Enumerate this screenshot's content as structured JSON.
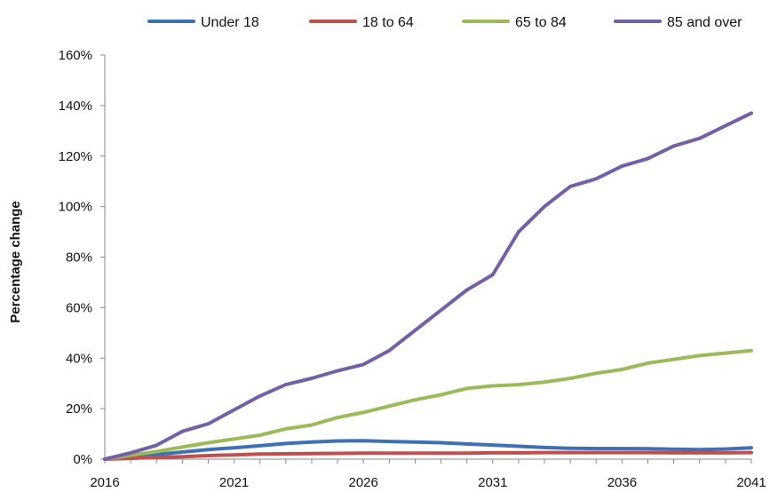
{
  "chart_data": {
    "type": "line",
    "title": "",
    "xlabel": "",
    "ylabel": "Percentage change",
    "x": [
      2016,
      2017,
      2018,
      2019,
      2020,
      2021,
      2022,
      2023,
      2024,
      2025,
      2026,
      2027,
      2028,
      2029,
      2030,
      2031,
      2032,
      2033,
      2034,
      2035,
      2036,
      2037,
      2038,
      2039,
      2040,
      2041
    ],
    "x_ticks": [
      "2016",
      "2021",
      "2026",
      "2031",
      "2036",
      "2041"
    ],
    "xlim": [
      2016,
      2041
    ],
    "ylim": [
      0,
      160
    ],
    "y_ticks": [
      "0%",
      "20%",
      "40%",
      "60%",
      "80%",
      "100%",
      "120%",
      "140%",
      "160%"
    ],
    "grid": false,
    "legend_position": "top",
    "series": [
      {
        "name": "Under 18",
        "color": "#3f6fb5",
        "values": [
          0,
          0.8,
          1.8,
          2.8,
          3.8,
          4.5,
          5.3,
          6.2,
          6.8,
          7.2,
          7.3,
          7.0,
          6.8,
          6.5,
          6.0,
          5.6,
          5.1,
          4.6,
          4.3,
          4.2,
          4.2,
          4.1,
          3.9,
          3.8,
          4.0,
          4.5
        ]
      },
      {
        "name": "18 to 64",
        "color": "#c0504d",
        "values": [
          0,
          0.3,
          0.7,
          1.0,
          1.4,
          1.7,
          2.0,
          2.1,
          2.2,
          2.3,
          2.4,
          2.4,
          2.4,
          2.4,
          2.4,
          2.5,
          2.5,
          2.6,
          2.6,
          2.6,
          2.6,
          2.6,
          2.5,
          2.5,
          2.5,
          2.6
        ]
      },
      {
        "name": "65 to 84",
        "color": "#9bbb59",
        "values": [
          0,
          1.5,
          3.0,
          4.8,
          6.5,
          8.0,
          9.5,
          12.0,
          13.5,
          16.5,
          18.5,
          21.0,
          23.5,
          25.5,
          28.0,
          29.0,
          29.5,
          30.5,
          32.0,
          34.0,
          35.5,
          38.0,
          39.5,
          41.0,
          42.0,
          43.0
        ]
      },
      {
        "name": "85 and over",
        "color": "#7460a6",
        "values": [
          0,
          2.5,
          5.5,
          11.0,
          14.0,
          19.5,
          25.0,
          29.5,
          32.0,
          35.0,
          37.5,
          43.0,
          51.0,
          59.0,
          67.0,
          73.0,
          90.0,
          100.0,
          108.0,
          111.0,
          116.0,
          119.0,
          124.0,
          127.0,
          132.0,
          137.0
        ]
      }
    ]
  }
}
